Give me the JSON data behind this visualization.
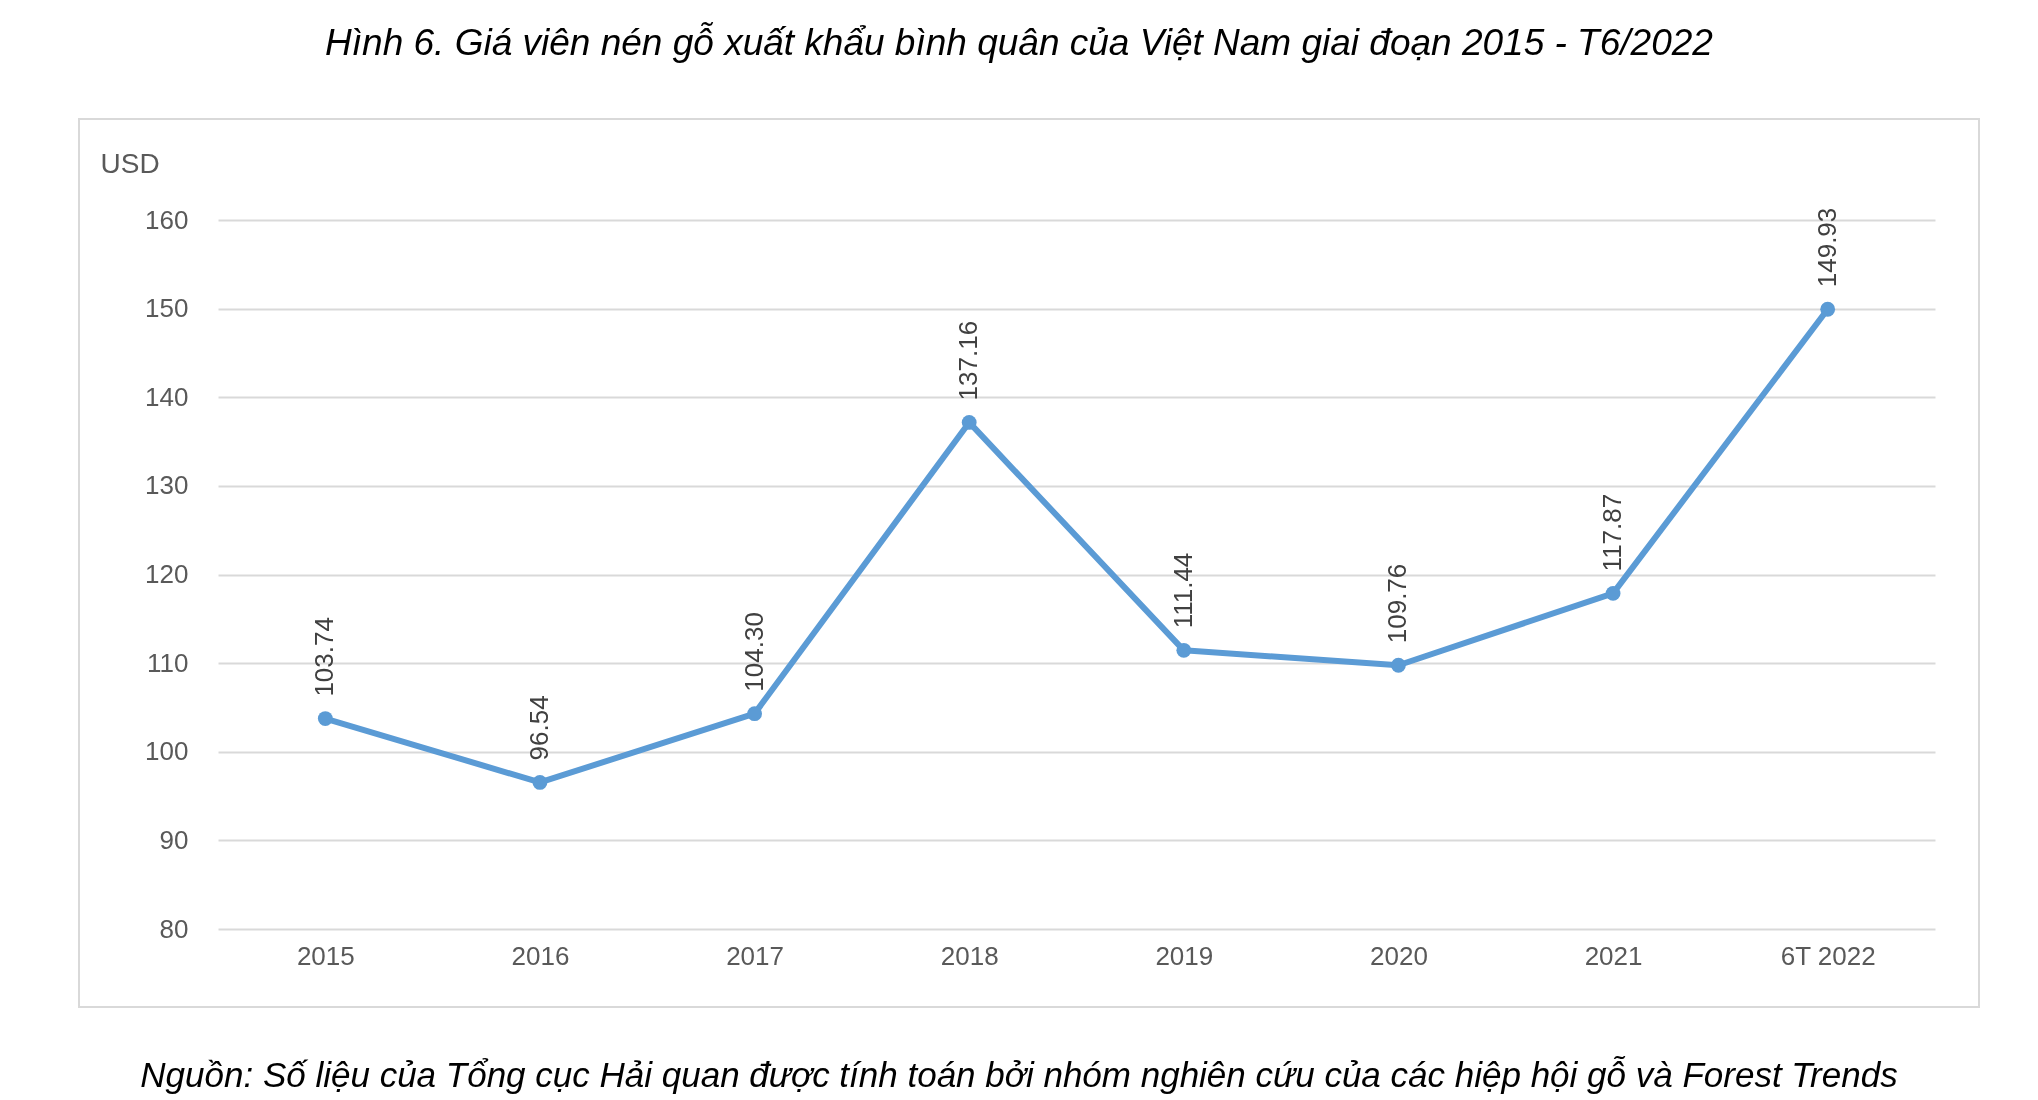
{
  "chart_data": {
    "type": "line",
    "title": "Hình 6. Giá viên nén gỗ xuất khẩu bình quân của Việt Nam giai đoạn 2015 - T6/2022",
    "ylabel": "USD",
    "categories": [
      "2015",
      "2016",
      "2017",
      "2018",
      "2019",
      "2020",
      "2021",
      "6T 2022"
    ],
    "series": [
      {
        "color": "#5b9bd5",
        "values": [
          103.74,
          96.54,
          104.3,
          137.16,
          111.44,
          109.76,
          117.87,
          149.93
        ]
      }
    ],
    "value_labels": [
      "103.74",
      "96.54",
      "104.30",
      "137.16",
      "111.44",
      "109.76",
      "117.87",
      "149.93"
    ],
    "ylim": [
      80,
      160
    ],
    "yticks": [
      80,
      90,
      100,
      110,
      120,
      130,
      140,
      150,
      160
    ],
    "grid": "y",
    "marker": "circle",
    "line_style": "solid",
    "annotations": [
      "Nguồn: Số liệu của Tổng cục Hải quan được tính toán bởi nhóm nghiên cứu của các hiệp hội gỗ và Forest Trends"
    ]
  }
}
